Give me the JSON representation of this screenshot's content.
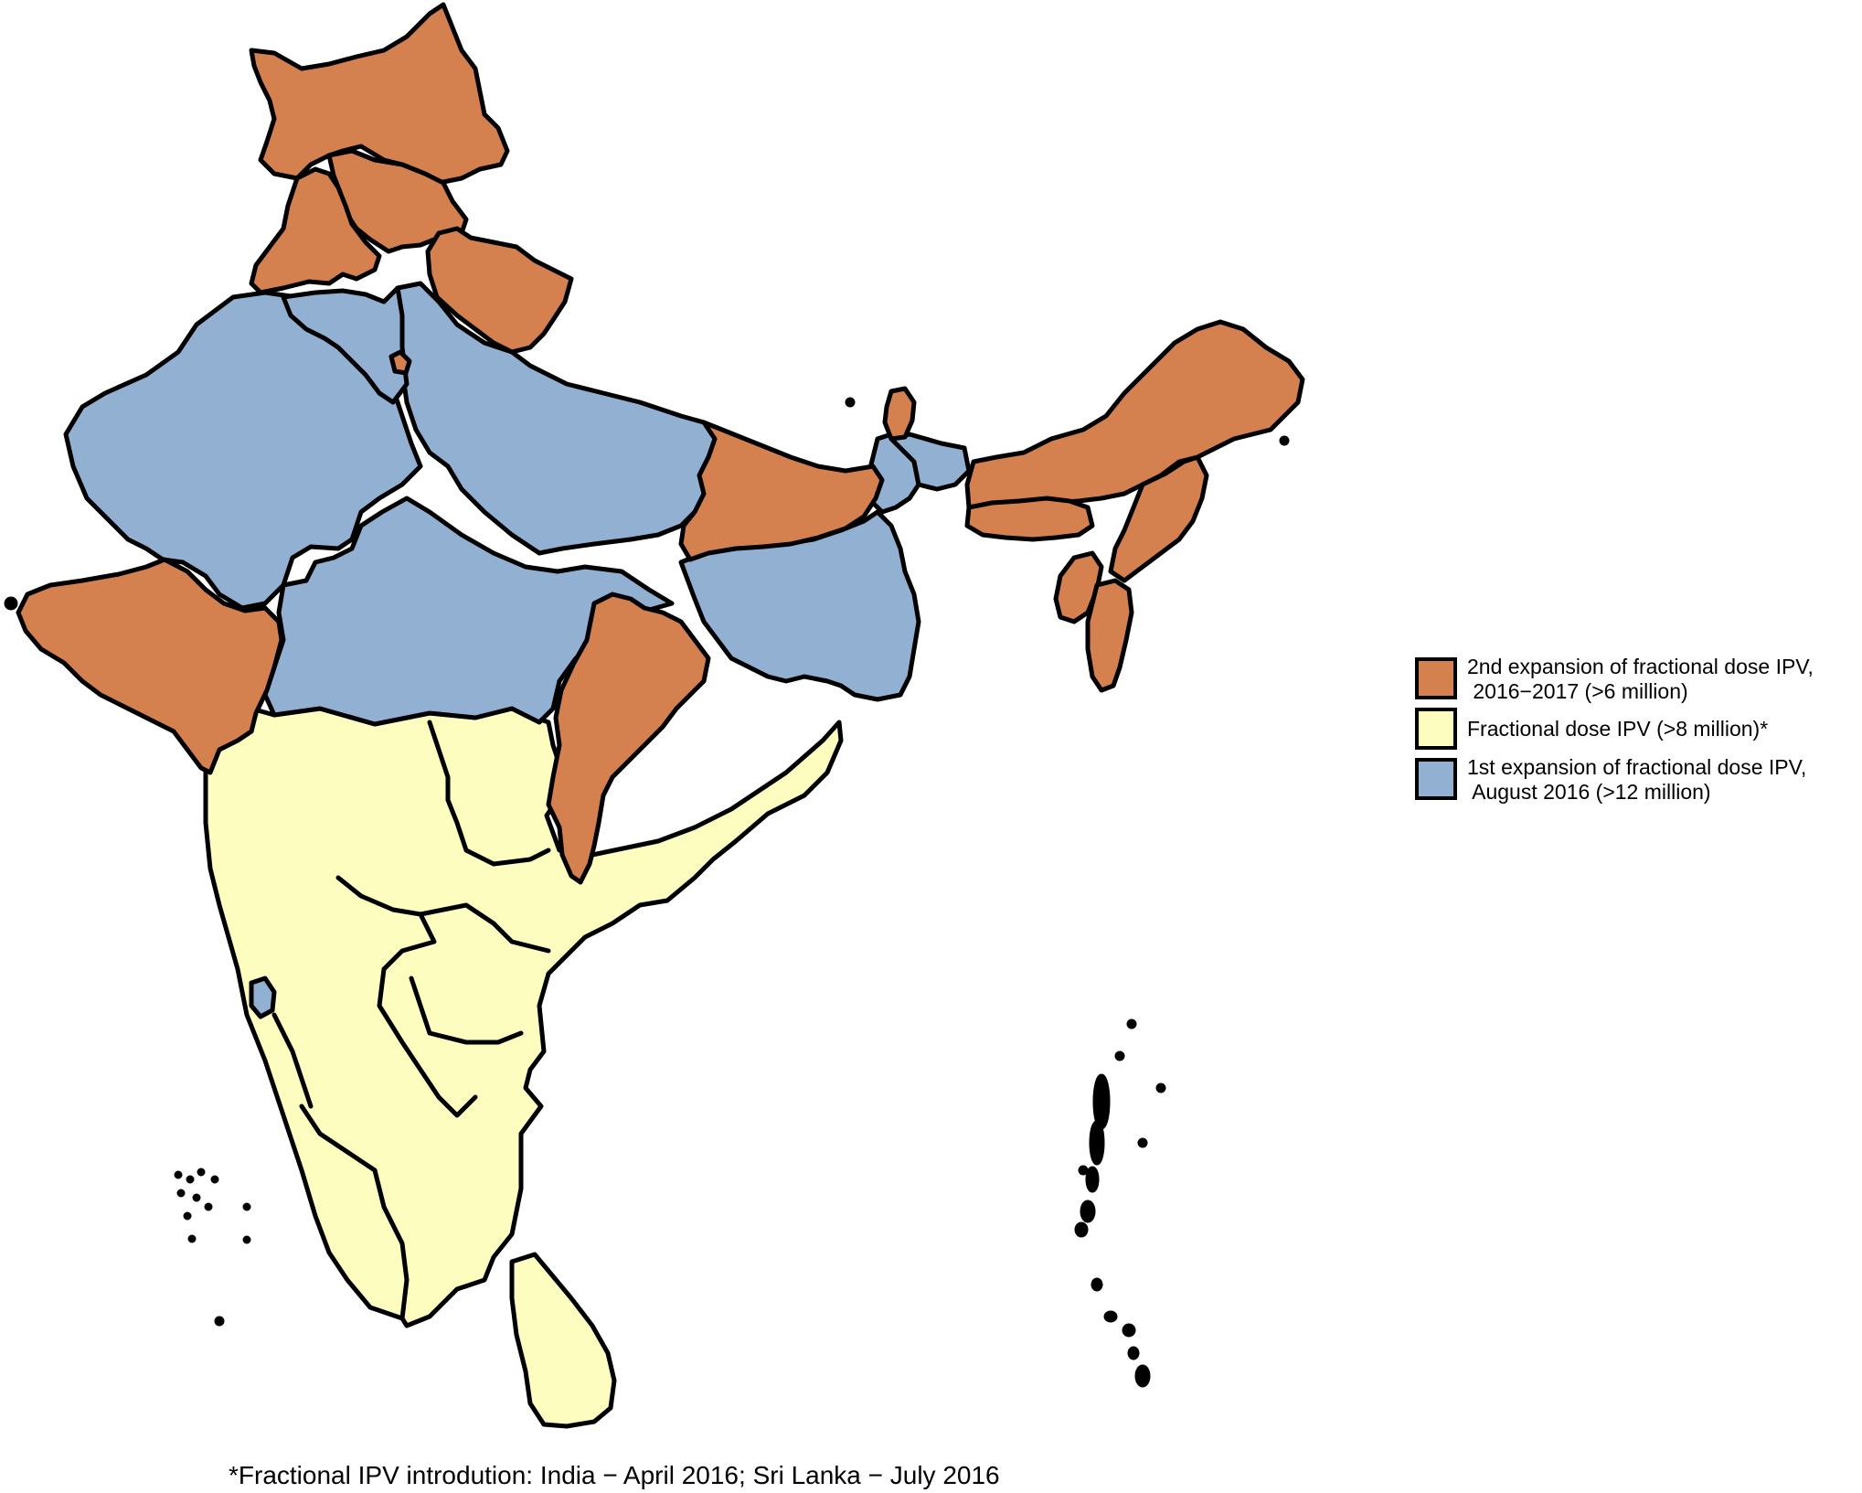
{
  "colors": {
    "second_expansion": "#D4804F",
    "fractional_dose": "#FDFDBF",
    "first_expansion": "#92B0D2",
    "border": "#000000",
    "background": "#FFFFFF"
  },
  "legend": [
    {
      "key": "second_expansion",
      "label_line1": "2nd expansion of fractional dose IPV,",
      "label_line2": " 2016−2017 (>6 million)",
      "color": "#D4804F"
    },
    {
      "key": "fractional_dose",
      "label_line1": "Fractional dose IPV (>8 million)*",
      "label_line2": "",
      "color": "#FDFDBF"
    },
    {
      "key": "first_expansion",
      "label_line1": "1st expansion of fractional dose IPV,",
      "label_line2": " August 2016 (>12 million)",
      "color": "#92B0D2"
    }
  ],
  "footnote": "*Fractional IPV introdution: India − April 2016; Sri Lanka − July 2016"
}
